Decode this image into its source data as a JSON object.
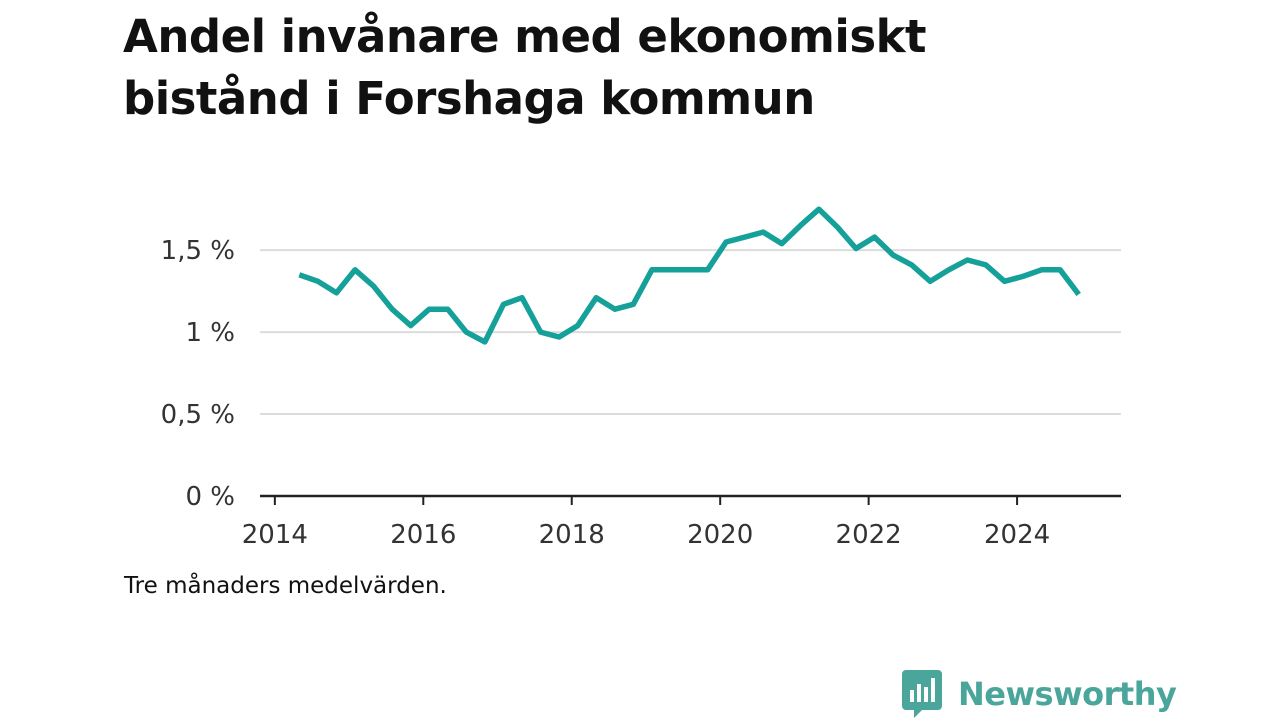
{
  "title_line1": "Andel invånare med ekonomiskt",
  "title_line2": "bistånd i Forshaga kommun",
  "caption": "Tre månaders medelvärden.",
  "brand": {
    "name": "Newsworthy",
    "icon": "newsworthy-logo-icon",
    "color": "#4aa59a"
  },
  "chart_data": {
    "type": "line",
    "title": "Andel invånare med ekonomiskt bistånd i Forshaga kommun",
    "note": "Tre månaders medelvärden.",
    "xlabel": "",
    "ylabel": "",
    "xlim": [
      2013.8,
      2025.4
    ],
    "ylim": [
      0,
      1.8
    ],
    "x_ticks": [
      2014,
      2016,
      2018,
      2020,
      2022,
      2024
    ],
    "x_tick_labels": [
      "2014",
      "2016",
      "2018",
      "2020",
      "2022",
      "2024"
    ],
    "y_ticks": [
      0,
      0.5,
      1,
      1.5
    ],
    "y_tick_labels": [
      "0 %",
      "0,5 %",
      "1 %",
      "1,5 %"
    ],
    "grid": "horizontal",
    "line_color": "#15a099",
    "series": [
      {
        "x": [
          2014.33,
          2014.58,
          2014.83,
          2015.08,
          2015.33,
          2015.58,
          2015.83,
          2016.08,
          2016.33,
          2016.58,
          2016.83,
          2017.08,
          2017.33,
          2017.58,
          2017.83,
          2018.08,
          2018.33,
          2018.58,
          2018.83,
          2019.08,
          2019.33,
          2019.58,
          2019.83,
          2020.08,
          2020.33,
          2020.58,
          2020.83,
          2021.08,
          2021.33,
          2021.58,
          2021.83,
          2022.08,
          2022.33,
          2022.58,
          2022.83,
          2023.08,
          2023.33,
          2023.58,
          2023.83,
          2024.08,
          2024.33,
          2024.58,
          2024.83
        ],
        "values": [
          1.35,
          1.31,
          1.24,
          1.38,
          1.28,
          1.14,
          1.04,
          1.14,
          1.14,
          1.0,
          0.94,
          1.17,
          1.21,
          1.0,
          0.97,
          1.04,
          1.21,
          1.14,
          1.17,
          1.38,
          1.38,
          1.38,
          1.38,
          1.55,
          1.58,
          1.61,
          1.54,
          1.65,
          1.75,
          1.64,
          1.51,
          1.58,
          1.47,
          1.41,
          1.31,
          1.38,
          1.44,
          1.41,
          1.31,
          1.34,
          1.38,
          1.38,
          1.23
        ]
      }
    ]
  }
}
